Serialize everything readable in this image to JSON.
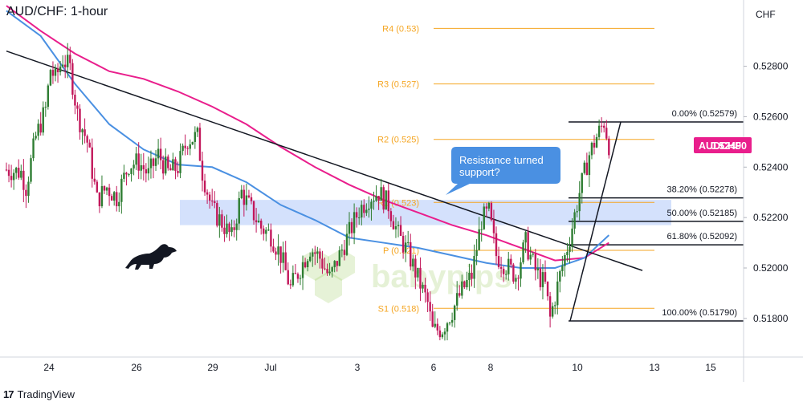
{
  "header": {
    "title": "AUD/CHF: 1-hour",
    "currency": "CHF"
  },
  "footer": {
    "brand": "TradingView",
    "logo_icon": "tradingview-logo-icon"
  },
  "colors": {
    "candle_up": "#2e7d32",
    "candle_down": "#c2185b",
    "ma_fast": "#4a90e2",
    "ma_slow": "#e91e8c",
    "pivot": "#f5a623",
    "fib": "#131722",
    "trendline": "#131722",
    "zone": "#c6d7fb",
    "callout": "#4a90e2",
    "price_badge": "#e91e8c",
    "watermark": "#8bc34a"
  },
  "annotations": {
    "callout_text": "Resistance turned support?",
    "watermark_text": "babypips",
    "bull_icon": "bull-icon"
  },
  "chart_data": {
    "type": "candlestick",
    "title": "AUD/CHF: 1-hour",
    "symbol": "AUDCHF",
    "last_price": "0.52490",
    "y_axis": {
      "range": [
        0.5165,
        0.5305
      ],
      "ticks": [
        "0.52800",
        "0.52600",
        "0.52400",
        "0.52200",
        "0.52000",
        "0.51800"
      ]
    },
    "x_axis": {
      "ticks": [
        "24",
        "26",
        "29",
        "Jul",
        "3",
        "6",
        "8",
        "10",
        "13",
        "15"
      ]
    },
    "pivot_levels": [
      {
        "label": "R4 (0.53)",
        "value": 0.5295
      },
      {
        "label": "R3 (0.527)",
        "value": 0.5273
      },
      {
        "label": "R2 (0.525)",
        "value": 0.5251
      },
      {
        "label": "R1 (0.523)",
        "value": 0.5226
      },
      {
        "label": "P (0.521)",
        "value": 0.5207
      },
      {
        "label": "S1 (0.518)",
        "value": 0.5184
      }
    ],
    "fib_levels": [
      {
        "label": "0.00% (0.52579)",
        "value": 0.52579
      },
      {
        "label": "38.20% (0.52278)",
        "value": 0.52278
      },
      {
        "label": "50.00% (0.52185)",
        "value": 0.52185
      },
      {
        "label": "61.80% (0.52092)",
        "value": 0.52092
      },
      {
        "label": "100.00% (0.51790)",
        "value": 0.5179
      }
    ],
    "zone": {
      "from": 0.5217,
      "to": 0.5227
    },
    "trendline": {
      "from": [
        0,
        0.5286
      ],
      "to": [
        248,
        0.5199
      ]
    },
    "price_path": [
      [
        0,
        0.5239
      ],
      [
        6,
        0.5238
      ],
      [
        8,
        0.5232
      ],
      [
        12,
        0.5252
      ],
      [
        16,
        0.5263
      ],
      [
        18,
        0.5279
      ],
      [
        20,
        0.5275
      ],
      [
        23,
        0.5283
      ],
      [
        26,
        0.5279
      ],
      [
        29,
        0.5261
      ],
      [
        33,
        0.525
      ],
      [
        37,
        0.5227
      ],
      [
        41,
        0.5232
      ],
      [
        45,
        0.5228
      ],
      [
        50,
        0.5241
      ],
      [
        54,
        0.5242
      ],
      [
        58,
        0.5237
      ],
      [
        62,
        0.5245
      ],
      [
        66,
        0.5238
      ],
      [
        70,
        0.524
      ],
      [
        74,
        0.5251
      ],
      [
        78,
        0.5252
      ],
      [
        80,
        0.5238
      ],
      [
        84,
        0.5223
      ],
      [
        88,
        0.5218
      ],
      [
        92,
        0.5212
      ],
      [
        96,
        0.523
      ],
      [
        100,
        0.5223
      ],
      [
        104,
        0.5216
      ],
      [
        108,
        0.5213
      ],
      [
        112,
        0.5205
      ],
      [
        116,
        0.5192
      ],
      [
        120,
        0.52
      ],
      [
        124,
        0.5208
      ],
      [
        128,
        0.5204
      ],
      [
        132,
        0.5196
      ],
      [
        136,
        0.5205
      ],
      [
        140,
        0.5214
      ],
      [
        144,
        0.5223
      ],
      [
        148,
        0.5228
      ],
      [
        152,
        0.523
      ],
      [
        156,
        0.5225
      ],
      [
        160,
        0.5213
      ],
      [
        164,
        0.5206
      ],
      [
        168,
        0.5196
      ],
      [
        172,
        0.5186
      ],
      [
        174,
        0.5175
      ],
      [
        178,
        0.5176
      ],
      [
        182,
        0.5183
      ],
      [
        186,
        0.5191
      ],
      [
        190,
        0.5197
      ],
      [
        194,
        0.5219
      ],
      [
        197,
        0.5222
      ],
      [
        200,
        0.5205
      ],
      [
        204,
        0.5201
      ],
      [
        208,
        0.5197
      ],
      [
        212,
        0.521
      ],
      [
        216,
        0.5199
      ],
      [
        220,
        0.5193
      ],
      [
        222,
        0.518
      ],
      [
        226,
        0.5197
      ],
      [
        230,
        0.5212
      ],
      [
        234,
        0.523
      ],
      [
        238,
        0.5245
      ],
      [
        241,
        0.5252
      ],
      [
        244,
        0.5258
      ],
      [
        246,
        0.5249
      ]
    ],
    "ma_fast": [
      [
        0,
        0.5302
      ],
      [
        14,
        0.5292
      ],
      [
        28,
        0.5273
      ],
      [
        42,
        0.5257
      ],
      [
        56,
        0.5247
      ],
      [
        70,
        0.5241
      ],
      [
        84,
        0.524
      ],
      [
        98,
        0.5234
      ],
      [
        112,
        0.5225
      ],
      [
        126,
        0.5219
      ],
      [
        140,
        0.5212
      ],
      [
        154,
        0.521
      ],
      [
        168,
        0.5208
      ],
      [
        182,
        0.5205
      ],
      [
        196,
        0.5202
      ],
      [
        210,
        0.52
      ],
      [
        224,
        0.52
      ],
      [
        236,
        0.5204
      ],
      [
        246,
        0.5213
      ]
    ],
    "ma_slow": [
      [
        0,
        0.5304
      ],
      [
        14,
        0.5294
      ],
      [
        28,
        0.5285
      ],
      [
        42,
        0.5278
      ],
      [
        56,
        0.5275
      ],
      [
        70,
        0.527
      ],
      [
        84,
        0.5264
      ],
      [
        98,
        0.5257
      ],
      [
        112,
        0.5248
      ],
      [
        126,
        0.524
      ],
      [
        140,
        0.5233
      ],
      [
        154,
        0.5227
      ],
      [
        168,
        0.5222
      ],
      [
        182,
        0.5217
      ],
      [
        196,
        0.5213
      ],
      [
        210,
        0.5208
      ],
      [
        224,
        0.5203
      ],
      [
        236,
        0.5204
      ],
      [
        246,
        0.521
      ]
    ]
  }
}
